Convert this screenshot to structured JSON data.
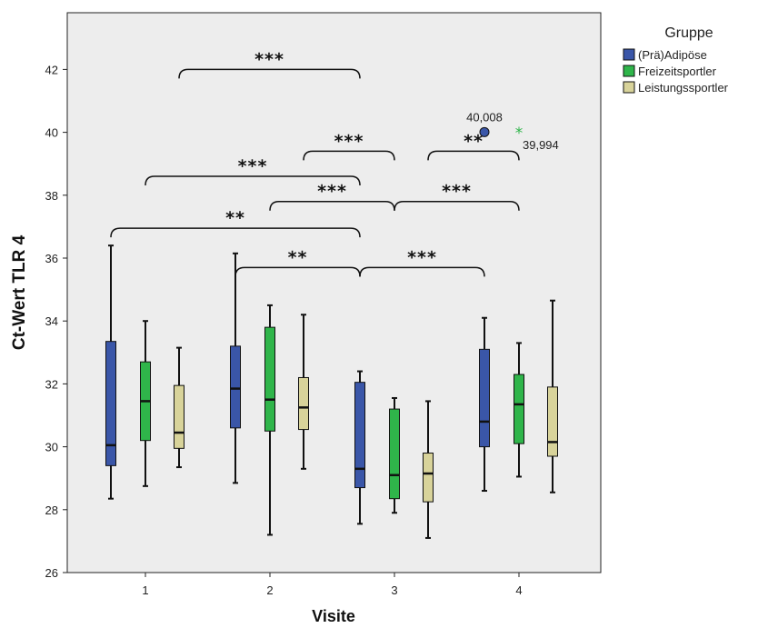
{
  "chart_data": {
    "type": "boxplot",
    "xlabel": "Visite",
    "ylabel": "Ct-Wert TLR 4",
    "ylim": [
      26,
      43.8
    ],
    "yticks": [
      26,
      28,
      30,
      32,
      34,
      36,
      38,
      40,
      42
    ],
    "categories": [
      "1",
      "2",
      "3",
      "4"
    ],
    "legend": {
      "title": "Gruppe",
      "position": "top-right"
    },
    "series": [
      {
        "name": "(Prä)Adipöse",
        "color": "#3a56a8",
        "boxes": [
          {
            "min": 28.35,
            "q1": 29.4,
            "median": 30.05,
            "q3": 33.35,
            "max": 36.4
          },
          {
            "min": 28.85,
            "q1": 30.6,
            "median": 31.85,
            "q3": 33.2,
            "max": 36.15
          },
          {
            "min": 27.55,
            "q1": 28.7,
            "median": 29.3,
            "q3": 32.05,
            "max": 32.4
          },
          {
            "min": 28.6,
            "q1": 30.0,
            "median": 30.8,
            "q3": 33.1,
            "max": 34.1
          }
        ]
      },
      {
        "name": "Freizeitsportler",
        "color": "#2fb54a",
        "boxes": [
          {
            "min": 28.75,
            "q1": 30.2,
            "median": 31.45,
            "q3": 32.7,
            "max": 34.0
          },
          {
            "min": 27.2,
            "q1": 30.5,
            "median": 31.5,
            "q3": 33.8,
            "max": 34.5
          },
          {
            "min": 27.9,
            "q1": 28.35,
            "median": 29.1,
            "q3": 31.2,
            "max": 31.55
          },
          {
            "min": 29.05,
            "q1": 30.1,
            "median": 31.35,
            "q3": 32.3,
            "max": 33.3
          }
        ]
      },
      {
        "name": "Leistungssportler",
        "color": "#d8d39a",
        "boxes": [
          {
            "min": 29.35,
            "q1": 29.95,
            "median": 30.45,
            "q3": 31.95,
            "max": 33.15
          },
          {
            "min": 29.3,
            "q1": 30.55,
            "median": 31.25,
            "q3": 32.2,
            "max": 34.2
          },
          {
            "min": 27.1,
            "q1": 28.25,
            "median": 29.15,
            "q3": 29.8,
            "max": 31.45
          },
          {
            "min": 28.55,
            "q1": 29.7,
            "median": 30.15,
            "q3": 31.9,
            "max": 34.65
          }
        ]
      }
    ],
    "outliers": [
      {
        "visit": "4",
        "series": 0,
        "value": 40.008,
        "label": "40,008",
        "marker": "circle"
      },
      {
        "visit": "4",
        "series": 1,
        "value": 39.994,
        "label": "39,994",
        "marker": "star"
      }
    ],
    "significance": [
      {
        "from_visit": 1,
        "from_series": 2,
        "to_visit": 3,
        "to_series": 0,
        "y": 42.0,
        "label": "***"
      },
      {
        "from_visit": 2,
        "from_series": 2,
        "to_visit": 3,
        "to_series": 1,
        "y": 39.4,
        "label": "***"
      },
      {
        "from_visit": 3,
        "from_series": 2,
        "to_visit": 4,
        "to_series": 1,
        "y": 39.4,
        "label": "**"
      },
      {
        "from_visit": 1,
        "from_series": 1,
        "to_visit": 3,
        "to_series": 0,
        "y": 38.6,
        "label": "***"
      },
      {
        "from_visit": 2,
        "from_series": 1,
        "to_visit": 3,
        "to_series": 1,
        "y": 37.8,
        "label": "***"
      },
      {
        "from_visit": 3,
        "from_series": 1,
        "to_visit": 4,
        "to_series": 1,
        "y": 37.8,
        "label": "***"
      },
      {
        "from_visit": 1,
        "from_series": 0,
        "to_visit": 3,
        "to_series": 0,
        "y": 36.95,
        "label": "**"
      },
      {
        "from_visit": 2,
        "from_series": 0,
        "to_visit": 3,
        "to_series": 0,
        "y": 35.7,
        "label": "**"
      },
      {
        "from_visit": 3,
        "from_series": 0,
        "to_visit": 4,
        "to_series": 0,
        "y": 35.7,
        "label": "***"
      }
    ]
  }
}
